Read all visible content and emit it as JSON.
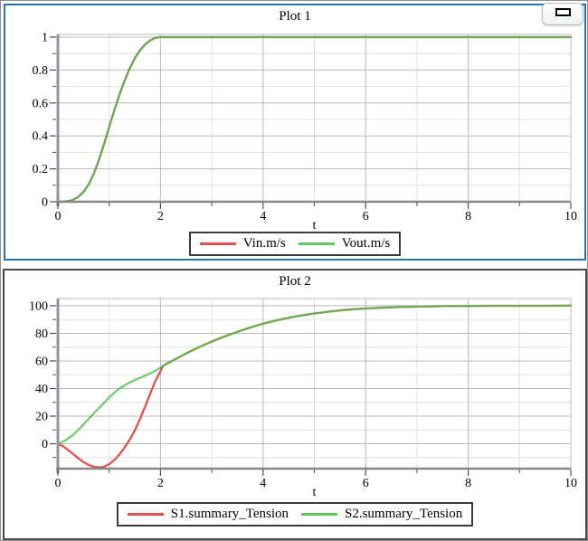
{
  "panels": [
    {
      "title": "Plot 1",
      "xlabel": "t",
      "has_collapse_button": true,
      "legend": [
        {
          "label": "Vin.m/s",
          "color": "#e1504b"
        },
        {
          "label": "Vout.m/s",
          "color": "#5fc65f"
        }
      ]
    },
    {
      "title": "Plot 2",
      "xlabel": "t",
      "has_collapse_button": false,
      "legend": [
        {
          "label": "S1.summary_Tension",
          "color": "#e1504b"
        },
        {
          "label": "S2.summary_Tension",
          "color": "#5fc65f"
        }
      ]
    }
  ],
  "colors": {
    "panel1_border": "#2277ae",
    "panel2_border": "#4a4a4a",
    "window_border": "#8f8f8f",
    "axis_y": "#9092ad",
    "axis_x": "#878787",
    "grid_major": "#b9b9b9",
    "grid_minor": "#e2e2e2",
    "frame": "#c6c6c6",
    "tick": "#4d4d4d",
    "series_red": "#e1504b",
    "series_green": "#52c152"
  },
  "chart_data": [
    {
      "type": "line",
      "title": "Plot 1",
      "xlabel": "t",
      "ylabel": "",
      "xlim": [
        0,
        10
      ],
      "ylim": [
        0,
        1.0165
      ],
      "grid": true,
      "legend_position": "bottom-center",
      "x_ticks_major": [
        0,
        2,
        4,
        6,
        8,
        10
      ],
      "x_ticks_minor": [
        1,
        3,
        5,
        7,
        9
      ],
      "y_ticks_major": [
        0,
        0.2,
        0.4,
        0.6,
        0.8,
        1
      ],
      "y_ticks_minor": [
        0.1,
        0.3,
        0.5,
        0.7,
        0.9
      ],
      "x_grid_major": [
        2,
        4,
        6,
        8,
        10
      ],
      "x_grid_minor": [
        1,
        3,
        5,
        7,
        9
      ],
      "y_grid_major": [
        0.2,
        0.4,
        0.6,
        0.8,
        1
      ],
      "y_grid_minor": [
        0.1,
        0.3,
        0.5,
        0.7,
        0.9
      ],
      "series": [
        {
          "name": "Vin.m/s",
          "color": "#e1504b",
          "opacity": 1,
          "points": [
            [
              0,
              0
            ],
            [
              0.1,
              0.001
            ],
            [
              0.2,
              0.004
            ],
            [
              0.3,
              0.012
            ],
            [
              0.4,
              0.03
            ],
            [
              0.5,
              0.06
            ],
            [
              0.6,
              0.105
            ],
            [
              0.7,
              0.17
            ],
            [
              0.8,
              0.255
            ],
            [
              0.9,
              0.35
            ],
            [
              1.0,
              0.455
            ],
            [
              1.1,
              0.555
            ],
            [
              1.2,
              0.65
            ],
            [
              1.3,
              0.735
            ],
            [
              1.4,
              0.81
            ],
            [
              1.5,
              0.872
            ],
            [
              1.6,
              0.92
            ],
            [
              1.7,
              0.955
            ],
            [
              1.8,
              0.98
            ],
            [
              1.9,
              0.995
            ],
            [
              2.0,
              1.0
            ],
            [
              2.5,
              1.0
            ],
            [
              3,
              1
            ],
            [
              4,
              1
            ],
            [
              5,
              1
            ],
            [
              6,
              1
            ],
            [
              7,
              1
            ],
            [
              8,
              1
            ],
            [
              9,
              1
            ],
            [
              10,
              1
            ]
          ]
        },
        {
          "name": "Vout.m/s",
          "color": "#52c152",
          "opacity": 0.82,
          "points": [
            [
              0,
              0
            ],
            [
              0.1,
              0.001
            ],
            [
              0.2,
              0.004
            ],
            [
              0.3,
              0.012
            ],
            [
              0.4,
              0.03
            ],
            [
              0.5,
              0.06
            ],
            [
              0.6,
              0.105
            ],
            [
              0.7,
              0.17
            ],
            [
              0.8,
              0.255
            ],
            [
              0.9,
              0.35
            ],
            [
              1.0,
              0.455
            ],
            [
              1.1,
              0.555
            ],
            [
              1.2,
              0.65
            ],
            [
              1.3,
              0.735
            ],
            [
              1.4,
              0.81
            ],
            [
              1.5,
              0.872
            ],
            [
              1.6,
              0.92
            ],
            [
              1.7,
              0.955
            ],
            [
              1.8,
              0.98
            ],
            [
              1.9,
              0.995
            ],
            [
              2.0,
              1.0
            ],
            [
              2.5,
              1.0
            ],
            [
              3,
              1
            ],
            [
              4,
              1
            ],
            [
              5,
              1
            ],
            [
              6,
              1
            ],
            [
              7,
              1
            ],
            [
              8,
              1
            ],
            [
              9,
              1
            ],
            [
              10,
              1
            ]
          ]
        }
      ]
    },
    {
      "type": "line",
      "title": "Plot 2",
      "xlabel": "t",
      "ylabel": "",
      "xlim": [
        0,
        10
      ],
      "ylim": [
        -18.0,
        105.2
      ],
      "grid": true,
      "legend_position": "bottom-center",
      "x_ticks_major": [
        0,
        2,
        4,
        6,
        8,
        10
      ],
      "x_ticks_minor": [
        1,
        3,
        5,
        7,
        9
      ],
      "y_ticks_major": [
        0,
        20,
        40,
        60,
        80,
        100
      ],
      "y_ticks_minor": [
        -10,
        10,
        30,
        50,
        70,
        90
      ],
      "x_grid_major": [
        2,
        4,
        6,
        8,
        10
      ],
      "x_grid_minor": [
        1,
        3,
        5,
        7,
        9
      ],
      "y_grid_major": [
        0,
        20,
        40,
        60,
        80,
        100
      ],
      "y_grid_minor": [
        -10,
        10,
        30,
        50,
        70,
        90
      ],
      "series": [
        {
          "name": "S1.summary_Tension",
          "color": "#e1504b",
          "opacity": 1,
          "points": [
            [
              0,
              0
            ],
            [
              0.1,
              -1.8
            ],
            [
              0.2,
              -4.5
            ],
            [
              0.3,
              -7.5
            ],
            [
              0.4,
              -10.5
            ],
            [
              0.5,
              -13.2
            ],
            [
              0.6,
              -15.3
            ],
            [
              0.7,
              -16.7
            ],
            [
              0.8,
              -17.2
            ],
            [
              0.9,
              -16.6
            ],
            [
              1.0,
              -14.8
            ],
            [
              1.1,
              -11.8
            ],
            [
              1.2,
              -7.8
            ],
            [
              1.3,
              -2.8
            ],
            [
              1.4,
              3
            ],
            [
              1.5,
              9.8
            ],
            [
              1.6,
              18
            ],
            [
              1.7,
              27
            ],
            [
              1.8,
              36.5
            ],
            [
              1.9,
              45.5
            ],
            [
              2.0,
              52.5
            ],
            [
              2.05,
              56.5
            ],
            [
              2.2,
              59.5
            ],
            [
              2.4,
              63.5
            ],
            [
              2.6,
              67.3
            ],
            [
              2.8,
              70.8
            ],
            [
              3.0,
              74
            ],
            [
              3.2,
              77
            ],
            [
              3.4,
              79.8
            ],
            [
              3.6,
              82.4
            ],
            [
              3.8,
              84.8
            ],
            [
              4.0,
              87
            ],
            [
              4.25,
              89.3
            ],
            [
              4.5,
              91.3
            ],
            [
              4.75,
              93
            ],
            [
              5.0,
              94.4
            ],
            [
              5.25,
              95.6
            ],
            [
              5.5,
              96.6
            ],
            [
              5.75,
              97.4
            ],
            [
              6.0,
              98
            ],
            [
              6.5,
              98.9
            ],
            [
              7.0,
              99.4
            ],
            [
              7.5,
              99.7
            ],
            [
              8.0,
              99.85
            ],
            [
              8.5,
              99.93
            ],
            [
              9.0,
              99.97
            ],
            [
              9.5,
              99.99
            ],
            [
              10,
              100
            ]
          ]
        },
        {
          "name": "S2.summary_Tension",
          "color": "#52c152",
          "opacity": 0.82,
          "points": [
            [
              0,
              0
            ],
            [
              0.15,
              2.5
            ],
            [
              0.3,
              6.5
            ],
            [
              0.45,
              12
            ],
            [
              0.6,
              18
            ],
            [
              0.75,
              24
            ],
            [
              0.9,
              29.5
            ],
            [
              1.0,
              33.5
            ],
            [
              1.1,
              37
            ],
            [
              1.2,
              40
            ],
            [
              1.35,
              43.5
            ],
            [
              1.5,
              46.2
            ],
            [
              1.65,
              48.6
            ],
            [
              1.8,
              51
            ],
            [
              1.95,
              54
            ],
            [
              2.05,
              56.5
            ],
            [
              2.2,
              59.5
            ],
            [
              2.4,
              63.5
            ],
            [
              2.6,
              67.3
            ],
            [
              2.8,
              70.8
            ],
            [
              3.0,
              74
            ],
            [
              3.2,
              77
            ],
            [
              3.4,
              79.8
            ],
            [
              3.6,
              82.4
            ],
            [
              3.8,
              84.8
            ],
            [
              4.0,
              87
            ],
            [
              4.25,
              89.3
            ],
            [
              4.5,
              91.3
            ],
            [
              4.75,
              93
            ],
            [
              5.0,
              94.4
            ],
            [
              5.25,
              95.6
            ],
            [
              5.5,
              96.6
            ],
            [
              5.75,
              97.4
            ],
            [
              6.0,
              98
            ],
            [
              6.5,
              98.9
            ],
            [
              7.0,
              99.4
            ],
            [
              7.5,
              99.7
            ],
            [
              8.0,
              99.85
            ],
            [
              8.5,
              99.93
            ],
            [
              9.0,
              99.97
            ],
            [
              9.5,
              99.99
            ],
            [
              10,
              100
            ]
          ]
        }
      ]
    }
  ]
}
